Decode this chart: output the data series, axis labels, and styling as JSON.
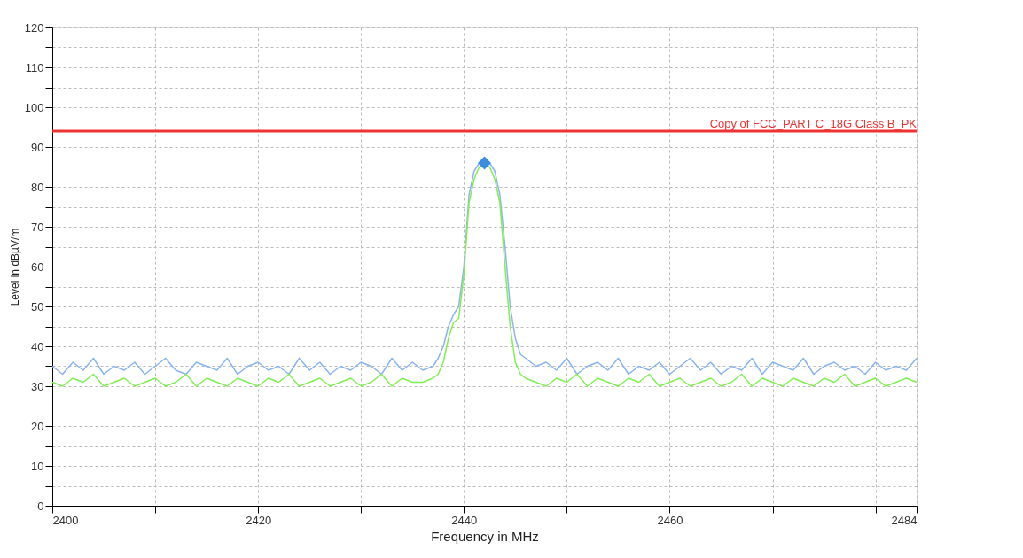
{
  "chart_data": {
    "type": "line",
    "xlabel": "Frequency in MHz",
    "ylabel": "Level in dBµV/m",
    "xlim": [
      2400,
      2484
    ],
    "ylim": [
      0,
      120
    ],
    "xticks": [
      2400,
      {
        "value": 2410,
        "label": null
      },
      2420,
      {
        "value": 2430,
        "label": null
      },
      2440,
      {
        "value": 2450,
        "label": null
      },
      2460,
      {
        "value": 2470,
        "label": null
      },
      {
        "value": 2480,
        "label": null
      },
      2484
    ],
    "yticks": [
      0,
      {
        "value": 5,
        "label": null
      },
      10,
      {
        "value": 15,
        "label": null
      },
      20,
      {
        "value": 25,
        "label": null
      },
      30,
      {
        "value": 35,
        "label": null
      },
      40,
      {
        "value": 45,
        "label": null
      },
      50,
      {
        "value": 55,
        "label": null
      },
      60,
      {
        "value": 65,
        "label": null
      },
      70,
      {
        "value": 75,
        "label": null
      },
      80,
      {
        "value": 85,
        "label": null
      },
      90,
      {
        "value": 95,
        "label": null
      },
      100,
      {
        "value": 105,
        "label": null
      },
      110,
      {
        "value": 115,
        "label": null
      },
      120
    ],
    "grid": true,
    "line_style": "solid",
    "marker": "none",
    "series": [
      {
        "color": "#8ab4f0",
        "x": [
          2400,
          2401,
          2402,
          2403,
          2404,
          2405,
          2406,
          2407,
          2408,
          2409,
          2410,
          2411,
          2412,
          2413,
          2414,
          2415,
          2416,
          2417,
          2418,
          2419,
          2420,
          2421,
          2422,
          2423,
          2424,
          2425,
          2426,
          2427,
          2428,
          2429,
          2430,
          2431,
          2432,
          2433,
          2434,
          2435,
          2436,
          2437,
          2437.5,
          2438,
          2438.5,
          2439,
          2439.5,
          2440,
          2440.5,
          2441,
          2441.5,
          2442,
          2442.5,
          2443,
          2443.5,
          2444,
          2444.5,
          2445,
          2445.5,
          2446,
          2447,
          2448,
          2449,
          2450,
          2451,
          2452,
          2453,
          2454,
          2455,
          2456,
          2457,
          2458,
          2459,
          2460,
          2461,
          2462,
          2463,
          2464,
          2465,
          2466,
          2467,
          2468,
          2469,
          2470,
          2471,
          2472,
          2473,
          2474,
          2475,
          2476,
          2477,
          2478,
          2479,
          2480,
          2481,
          2482,
          2483,
          2484
        ],
        "values": [
          35,
          33,
          36,
          34,
          37,
          33,
          35,
          34,
          36,
          33,
          35,
          37,
          34,
          33,
          36,
          35,
          34,
          37,
          33,
          35,
          36,
          34,
          35,
          33,
          37,
          34,
          36,
          33,
          35,
          34,
          36,
          35,
          33,
          37,
          34,
          36,
          34,
          35,
          37,
          40,
          45,
          48,
          50,
          60,
          78,
          84,
          86,
          87,
          86,
          84,
          78,
          65,
          50,
          42,
          38,
          37,
          35,
          36,
          34,
          37,
          33,
          35,
          36,
          34,
          37,
          33,
          35,
          34,
          36,
          33,
          35,
          37,
          34,
          36,
          33,
          35,
          34,
          37,
          33,
          36,
          35,
          34,
          37,
          33,
          35,
          36,
          34,
          35,
          33,
          36,
          34,
          35,
          34,
          37
        ]
      },
      {
        "color": "#80f050",
        "x": [
          2400,
          2401,
          2402,
          2403,
          2404,
          2405,
          2406,
          2407,
          2408,
          2409,
          2410,
          2411,
          2412,
          2413,
          2414,
          2415,
          2416,
          2417,
          2418,
          2419,
          2420,
          2421,
          2422,
          2423,
          2424,
          2425,
          2426,
          2427,
          2428,
          2429,
          2430,
          2431,
          2432,
          2433,
          2434,
          2435,
          2436,
          2437,
          2437.5,
          2438,
          2438.5,
          2439,
          2439.5,
          2440,
          2440.5,
          2441,
          2441.5,
          2442,
          2442.5,
          2443,
          2443.5,
          2444,
          2444.5,
          2445,
          2445.5,
          2446,
          2447,
          2448,
          2449,
          2450,
          2451,
          2452,
          2453,
          2454,
          2455,
          2456,
          2457,
          2458,
          2459,
          2460,
          2461,
          2462,
          2463,
          2464,
          2465,
          2466,
          2467,
          2468,
          2469,
          2470,
          2471,
          2472,
          2473,
          2474,
          2475,
          2476,
          2477,
          2478,
          2479,
          2480,
          2481,
          2482,
          2483,
          2484
        ],
        "values": [
          31,
          30,
          32,
          31,
          33,
          30,
          31,
          32,
          30,
          31,
          32,
          30,
          31,
          33,
          30,
          32,
          31,
          30,
          32,
          31,
          30,
          32,
          31,
          33,
          30,
          31,
          32,
          30,
          31,
          32,
          30,
          31,
          33,
          30,
          32,
          31,
          31,
          32,
          33,
          36,
          42,
          46,
          47,
          58,
          76,
          82,
          85,
          86,
          85,
          82,
          76,
          60,
          45,
          36,
          33,
          32,
          31,
          30,
          32,
          31,
          33,
          30,
          32,
          31,
          30,
          32,
          31,
          33,
          30,
          31,
          32,
          30,
          31,
          32,
          30,
          31,
          33,
          30,
          32,
          31,
          30,
          32,
          31,
          30,
          32,
          31,
          33,
          30,
          31,
          32,
          30,
          31,
          32,
          31
        ]
      },
      {
        "type": "scatter",
        "marker": "diamond",
        "color": "#3a8ee0",
        "x": [
          2442
        ],
        "values": [
          86
        ]
      }
    ],
    "ref_lines": [
      {
        "axis": "y",
        "value": 94,
        "label": "Copy of FCC_PART C_18G Class B_PK",
        "color": "#ee3333",
        "line_style": "solid"
      }
    ]
  }
}
